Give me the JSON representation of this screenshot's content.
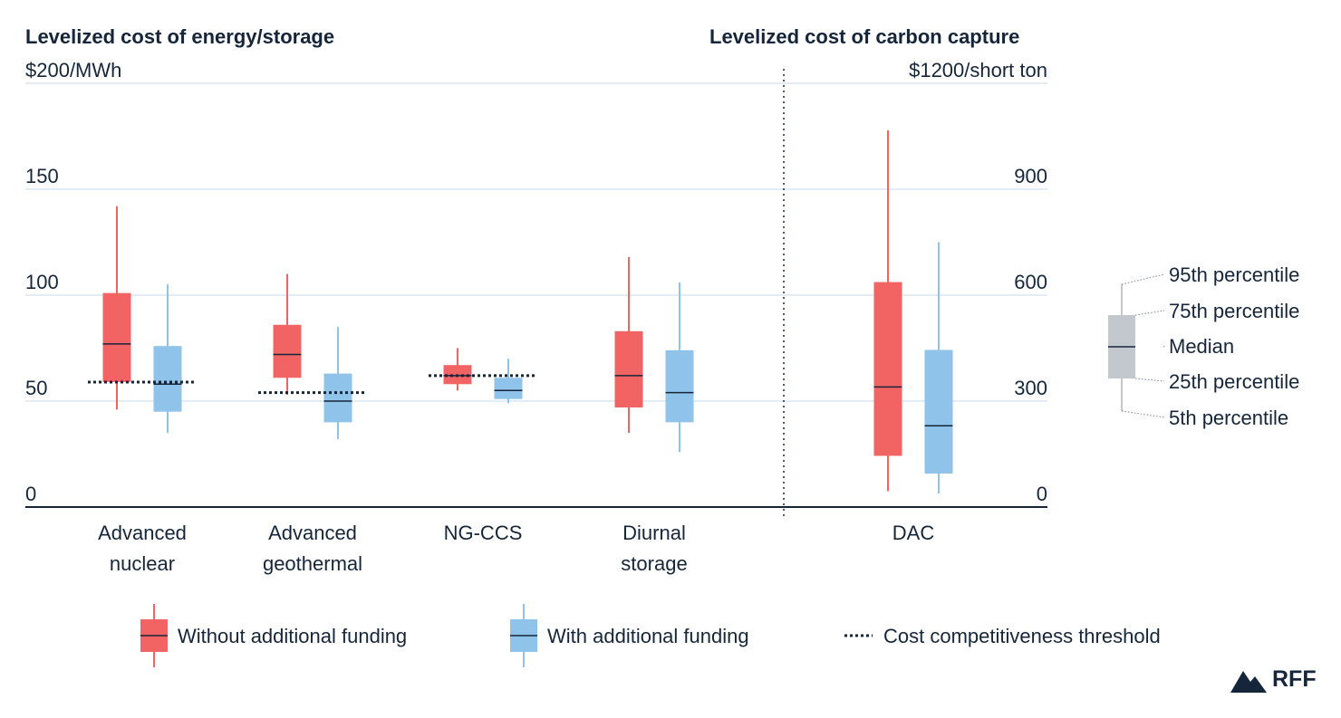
{
  "chart_data": {
    "type": "box",
    "title_left": "Levelized cost of energy/storage",
    "title_right": "Levelized cost of carbon capture",
    "y_left": {
      "unit_label": "$200/MWh",
      "min": 0,
      "max": 200,
      "ticks": [
        "0",
        "50",
        "100",
        "150"
      ]
    },
    "y_right": {
      "unit_label": "$1200/short ton",
      "min": 0,
      "max": 1200,
      "ticks": [
        "0",
        "300",
        "600",
        "900"
      ]
    },
    "categories": [
      {
        "label_lines": [
          "Advanced",
          "nuclear"
        ],
        "axis": "left",
        "threshold": 59,
        "without": {
          "p5": 46,
          "p25": 59,
          "median": 77,
          "p75": 101,
          "p95": 142
        },
        "with": {
          "p5": 35,
          "p25": 45,
          "median": 58,
          "p75": 76,
          "p95": 105
        }
      },
      {
        "label_lines": [
          "Advanced",
          "geothermal"
        ],
        "axis": "left",
        "threshold": 54,
        "without": {
          "p5": 53,
          "p25": 61,
          "median": 72,
          "p75": 86,
          "p95": 110
        },
        "with": {
          "p5": 32,
          "p25": 40,
          "median": 50,
          "p75": 63,
          "p95": 85
        }
      },
      {
        "label_lines": [
          "NG-CCS"
        ],
        "axis": "left",
        "threshold": 62,
        "without": {
          "p5": 55,
          "p25": 58,
          "median": 62,
          "p75": 67,
          "p95": 75
        },
        "with": {
          "p5": 49,
          "p25": 51,
          "median": 55,
          "p75": 61,
          "p95": 70
        }
      },
      {
        "label_lines": [
          "Diurnal",
          "storage"
        ],
        "axis": "left",
        "threshold": null,
        "without": {
          "p5": 35,
          "p25": 47,
          "median": 62,
          "p75": 83,
          "p95": 118
        },
        "with": {
          "p5": 26,
          "p25": 40,
          "median": 54,
          "p75": 74,
          "p95": 106
        }
      },
      {
        "label_lines": [
          "DAC"
        ],
        "axis": "right",
        "threshold": null,
        "without": {
          "p5": 45,
          "p25": 145,
          "median": 340,
          "p75": 637,
          "p95": 1067
        },
        "with": {
          "p5": 38,
          "p25": 95,
          "median": 230,
          "p75": 445,
          "p95": 750
        }
      }
    ],
    "legend": {
      "without": "Without additional funding",
      "with": "With additional funding",
      "threshold": "Cost competitiveness threshold"
    },
    "key": {
      "p95": "95th percentile",
      "p75": "75th percentile",
      "median": "Median",
      "p25": "25th percentile",
      "p5": "5th percentile"
    },
    "colors": {
      "without": "#f26463",
      "with": "#8fc3ea",
      "key": "#c2c8ce",
      "text": "#16263a",
      "grid": "#d8e6f3"
    }
  },
  "logo": {
    "text": "RFF"
  }
}
